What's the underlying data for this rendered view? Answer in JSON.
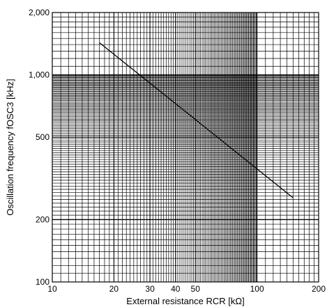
{
  "chart_data": {
    "type": "line",
    "title": "",
    "xlabel": "External resistance RCR [kΩ]",
    "ylabel": "Oscillation frequency fOSC3 [kHz]",
    "x_scale": "log",
    "y_scale": "log",
    "xlim": [
      10,
      200
    ],
    "ylim": [
      100,
      2000
    ],
    "grid": true,
    "x_ticks": [
      10,
      20,
      30,
      40,
      50,
      100,
      200
    ],
    "x_tick_labels": [
      "10",
      "20",
      "30",
      "40",
      "50",
      "100",
      "200"
    ],
    "y_ticks": [
      100,
      200,
      500,
      1000,
      2000
    ],
    "y_tick_labels": [
      "100",
      "200",
      "500",
      "1,000",
      "2,000"
    ],
    "series": [
      {
        "x": [
          17,
          150
        ],
        "y": [
          1430,
          255
        ],
        "color": "#000000"
      }
    ]
  }
}
